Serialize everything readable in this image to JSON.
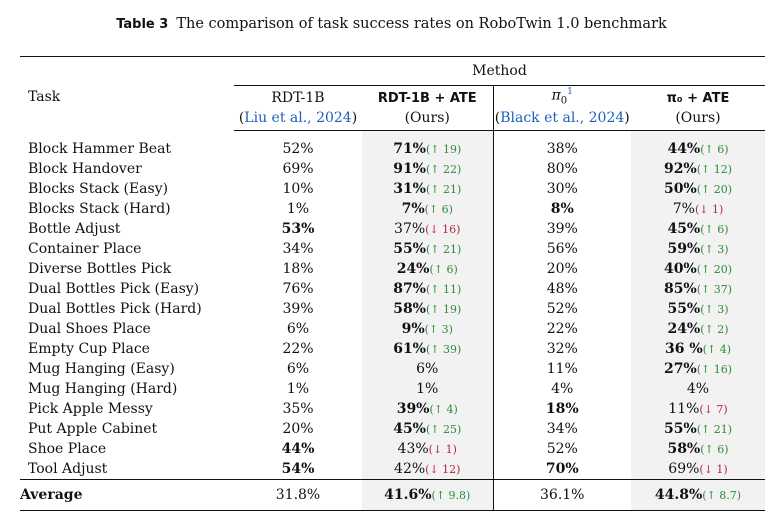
{
  "caption": {
    "label": "Table 3",
    "text": "The comparison of task success rates on RoboTwin 1.0 benchmark"
  },
  "header": {
    "task_col": "Task",
    "method_group": "Method",
    "columns": [
      {
        "name": "RDT-1B",
        "sub": "Liu et al., 2024",
        "style": "serif"
      },
      {
        "name": "RDT-1B + ATE",
        "sub": "(Ours)",
        "style": "sans"
      },
      {
        "name": "π₀¹",
        "sub": "Black et al., 2024",
        "style": "serif"
      },
      {
        "name": "π₀ + ATE",
        "sub": "(Ours)",
        "style": "sans"
      }
    ]
  },
  "rows": [
    {
      "task": "Block Hammer Beat",
      "rdt": "52%",
      "rdt_b": false,
      "rdtate": "71%",
      "rdtate_b": true,
      "rdtate_d": "↑ 19",
      "rdtate_dir": "up",
      "pi0": "38%",
      "pi0_b": false,
      "pi0ate": "44%",
      "pi0ate_b": true,
      "pi0ate_d": "↑ 6",
      "pi0ate_dir": "up"
    },
    {
      "task": "Block Handover",
      "rdt": "69%",
      "rdt_b": false,
      "rdtate": "91%",
      "rdtate_b": true,
      "rdtate_d": "↑ 22",
      "rdtate_dir": "up",
      "pi0": "80%",
      "pi0_b": false,
      "pi0ate": "92%",
      "pi0ate_b": true,
      "pi0ate_d": "↑ 12",
      "pi0ate_dir": "up"
    },
    {
      "task": "Blocks Stack (Easy)",
      "rdt": "10%",
      "rdt_b": false,
      "rdtate": "31%",
      "rdtate_b": true,
      "rdtate_d": "↑ 21",
      "rdtate_dir": "up",
      "pi0": "30%",
      "pi0_b": false,
      "pi0ate": "50%",
      "pi0ate_b": true,
      "pi0ate_d": "↑ 20",
      "pi0ate_dir": "up"
    },
    {
      "task": "Blocks Stack (Hard)",
      "rdt": "1%",
      "rdt_b": false,
      "rdtate": "7%",
      "rdtate_b": true,
      "rdtate_d": "↑ 6",
      "rdtate_dir": "up",
      "pi0": "8%",
      "pi0_b": true,
      "pi0ate": "7%",
      "pi0ate_b": false,
      "pi0ate_d": "↓ 1",
      "pi0ate_dir": "down"
    },
    {
      "task": "Bottle Adjust",
      "rdt": "53%",
      "rdt_b": true,
      "rdtate": "37%",
      "rdtate_b": false,
      "rdtate_d": "↓ 16",
      "rdtate_dir": "down",
      "pi0": "39%",
      "pi0_b": false,
      "pi0ate": "45%",
      "pi0ate_b": true,
      "pi0ate_d": "↑ 6",
      "pi0ate_dir": "up"
    },
    {
      "task": "Container Place",
      "rdt": "34%",
      "rdt_b": false,
      "rdtate": "55%",
      "rdtate_b": true,
      "rdtate_d": "↑ 21",
      "rdtate_dir": "up",
      "pi0": "56%",
      "pi0_b": false,
      "pi0ate": "59%",
      "pi0ate_b": true,
      "pi0ate_d": "↑ 3",
      "pi0ate_dir": "up"
    },
    {
      "task": "Diverse Bottles Pick",
      "rdt": "18%",
      "rdt_b": false,
      "rdtate": "24%",
      "rdtate_b": true,
      "rdtate_d": "↑ 6",
      "rdtate_dir": "up",
      "pi0": "20%",
      "pi0_b": false,
      "pi0ate": "40%",
      "pi0ate_b": true,
      "pi0ate_d": "↑ 20",
      "pi0ate_dir": "up"
    },
    {
      "task": "Dual Bottles Pick (Easy)",
      "rdt": "76%",
      "rdt_b": false,
      "rdtate": "87%",
      "rdtate_b": true,
      "rdtate_d": "↑ 11",
      "rdtate_dir": "up",
      "pi0": "48%",
      "pi0_b": false,
      "pi0ate": "85%",
      "pi0ate_b": true,
      "pi0ate_d": "↑ 37",
      "pi0ate_dir": "up"
    },
    {
      "task": "Dual Bottles Pick (Hard)",
      "rdt": "39%",
      "rdt_b": false,
      "rdtate": "58%",
      "rdtate_b": true,
      "rdtate_d": "↑ 19",
      "rdtate_dir": "up",
      "pi0": "52%",
      "pi0_b": false,
      "pi0ate": "55%",
      "pi0ate_b": true,
      "pi0ate_d": "↑ 3",
      "pi0ate_dir": "up"
    },
    {
      "task": "Dual Shoes Place",
      "rdt": "6%",
      "rdt_b": false,
      "rdtate": "9%",
      "rdtate_b": true,
      "rdtate_d": "↑ 3",
      "rdtate_dir": "up",
      "pi0": "22%",
      "pi0_b": false,
      "pi0ate": "24%",
      "pi0ate_b": true,
      "pi0ate_d": "↑ 2",
      "pi0ate_dir": "up"
    },
    {
      "task": "Empty Cup Place",
      "rdt": "22%",
      "rdt_b": false,
      "rdtate": "61%",
      "rdtate_b": true,
      "rdtate_d": "↑ 39",
      "rdtate_dir": "up",
      "pi0": "32%",
      "pi0_b": false,
      "pi0ate": "36 %",
      "pi0ate_b": true,
      "pi0ate_d": "↑ 4",
      "pi0ate_dir": "up"
    },
    {
      "task": "Mug Hanging (Easy)",
      "rdt": "6%",
      "rdt_b": false,
      "rdtate": "6%",
      "rdtate_b": false,
      "rdtate_d": "",
      "rdtate_dir": "",
      "pi0": "11%",
      "pi0_b": false,
      "pi0ate": "27%",
      "pi0ate_b": true,
      "pi0ate_d": "↑ 16",
      "pi0ate_dir": "up"
    },
    {
      "task": "Mug Hanging (Hard)",
      "rdt": "1%",
      "rdt_b": false,
      "rdtate": "1%",
      "rdtate_b": false,
      "rdtate_d": "",
      "rdtate_dir": "",
      "pi0": "4%",
      "pi0_b": false,
      "pi0ate": "4%",
      "pi0ate_b": false,
      "pi0ate_d": "",
      "pi0ate_dir": ""
    },
    {
      "task": "Pick Apple Messy",
      "rdt": "35%",
      "rdt_b": false,
      "rdtate": "39%",
      "rdtate_b": true,
      "rdtate_d": "↑ 4",
      "rdtate_dir": "up",
      "pi0": "18%",
      "pi0_b": true,
      "pi0ate": "11%",
      "pi0ate_b": false,
      "pi0ate_d": "↓ 7",
      "pi0ate_dir": "down"
    },
    {
      "task": "Put Apple Cabinet",
      "rdt": "20%",
      "rdt_b": false,
      "rdtate": "45%",
      "rdtate_b": true,
      "rdtate_d": "↑ 25",
      "rdtate_dir": "up",
      "pi0": "34%",
      "pi0_b": false,
      "pi0ate": "55%",
      "pi0ate_b": true,
      "pi0ate_d": "↑ 21",
      "pi0ate_dir": "up"
    },
    {
      "task": "Shoe Place",
      "rdt": "44%",
      "rdt_b": true,
      "rdtate": "43%",
      "rdtate_b": false,
      "rdtate_d": "↓ 1",
      "rdtate_dir": "down",
      "pi0": "52%",
      "pi0_b": false,
      "pi0ate": "58%",
      "pi0ate_b": true,
      "pi0ate_d": "↑ 6",
      "pi0ate_dir": "up"
    },
    {
      "task": "Tool Adjust",
      "rdt": "54%",
      "rdt_b": true,
      "rdtate": "42%",
      "rdtate_b": false,
      "rdtate_d": "↓ 12",
      "rdtate_dir": "down",
      "pi0": "70%",
      "pi0_b": true,
      "pi0ate": "69%",
      "pi0ate_b": false,
      "pi0ate_d": "↓ 1",
      "pi0ate_dir": "down"
    }
  ],
  "average": {
    "task": "Average",
    "rdt": "31.8%",
    "rdt_b": false,
    "rdtate": "41.6%",
    "rdtate_b": true,
    "rdtate_d": "↑ 9.8",
    "rdtate_dir": "up",
    "pi0": "36.1%",
    "pi0_b": false,
    "pi0ate": "44.8%",
    "pi0ate_b": true,
    "pi0ate_d": "↑ 8.7",
    "pi0ate_dir": "up"
  },
  "colors": {
    "up": "#2e8b35",
    "down": "#b3283e",
    "cite": "#1f5fbf",
    "shade": "#f2f2f2"
  }
}
